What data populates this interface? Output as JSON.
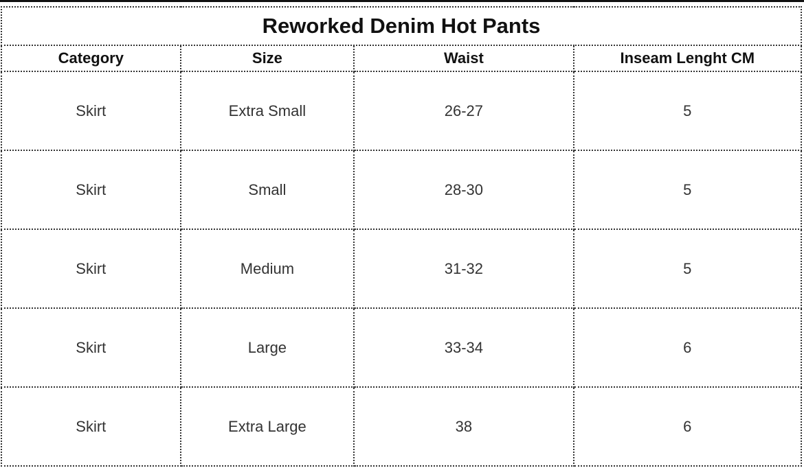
{
  "title": "Reworked Denim Hot Pants",
  "headers": [
    "Category",
    "Size",
    "Waist",
    "Inseam Lenght CM"
  ],
  "rows": [
    [
      "Skirt",
      "Extra Small",
      "26-27",
      "5"
    ],
    [
      "Skirt",
      "Small",
      "28-30",
      "5"
    ],
    [
      "Skirt",
      "Medium",
      "31-32",
      "5"
    ],
    [
      "Skirt",
      "Large",
      "33-34",
      "6"
    ],
    [
      "Skirt",
      "Extra Large",
      "38",
      "6"
    ]
  ]
}
